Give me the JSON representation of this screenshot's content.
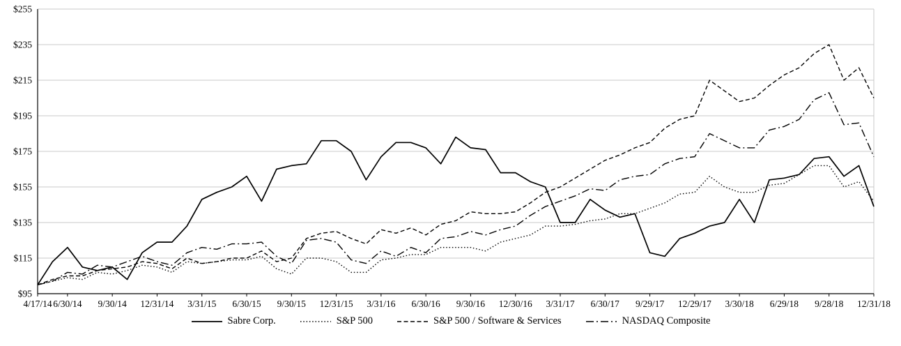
{
  "chart_data": {
    "type": "line",
    "title": "",
    "line_color": "#000000",
    "grid_color": "#c8c8c8",
    "axis_color": "#000000",
    "ylim": [
      95,
      255
    ],
    "y_ticks": [
      95,
      115,
      135,
      155,
      175,
      195,
      215,
      235,
      255
    ],
    "y_tick_prefix": "$",
    "n_points": 57,
    "x_tick_labels": [
      "4/17/14",
      "6/30/14",
      "9/30/14",
      "12/31/14",
      "3/31/15",
      "6/30/15",
      "9/30/15",
      "12/31/15",
      "3/31/16",
      "6/30/16",
      "9/30/16",
      "12/30/16",
      "3/31/17",
      "6/30/17",
      "9/29/17",
      "12/29/17",
      "3/30/18",
      "6/29/18",
      "9/28/18",
      "12/31/18"
    ],
    "x_tick_indices": [
      0,
      2,
      5,
      8,
      11,
      14,
      17,
      20,
      23,
      26,
      29,
      32,
      35,
      38,
      41,
      44,
      47,
      50,
      53,
      56
    ],
    "legend_position": "bottom",
    "series": [
      {
        "name": "Sabre Corp.",
        "dash": "solid",
        "values": [
          100,
          113,
          121,
          110,
          108,
          110,
          103,
          118,
          124,
          124,
          133,
          148,
          152,
          155,
          161,
          147,
          165,
          167,
          168,
          181,
          181,
          175,
          159,
          172,
          180,
          180,
          177,
          168,
          183,
          177,
          176,
          163,
          163,
          158,
          155,
          135,
          135,
          148,
          142,
          138,
          140,
          118,
          116,
          126,
          129,
          133,
          135,
          148,
          135,
          159,
          160,
          162,
          171,
          172,
          161,
          167,
          144
        ]
      },
      {
        "name": "S&P 500",
        "dash": "dotted",
        "values": [
          100,
          102,
          104,
          103,
          107,
          106,
          108,
          111,
          110,
          107,
          113,
          112,
          113,
          114,
          114,
          116,
          109,
          106,
          115,
          115,
          113,
          107,
          107,
          114,
          115,
          117,
          117,
          121,
          121,
          121,
          119,
          124,
          126,
          128,
          133,
          133,
          134,
          136,
          137,
          140,
          140,
          143,
          146,
          151,
          152,
          161,
          155,
          152,
          152,
          156,
          157,
          162,
          167,
          167,
          155,
          158,
          147
        ]
      },
      {
        "name": "S&P 500 / Software & Services",
        "dash": "dashed",
        "values": [
          100,
          103,
          105,
          105,
          108,
          109,
          110,
          113,
          112,
          109,
          115,
          112,
          113,
          115,
          115,
          119,
          113,
          115,
          126,
          129,
          130,
          126,
          123,
          131,
          129,
          132,
          128,
          134,
          136,
          141,
          140,
          140,
          141,
          146,
          152,
          155,
          160,
          165,
          170,
          173,
          177,
          180,
          188,
          193,
          195,
          215,
          209,
          203,
          205,
          212,
          218,
          222,
          230,
          235,
          215,
          222,
          205
        ]
      },
      {
        "name": "NASDAQ Composite",
        "dash": "dashdot",
        "values": [
          100,
          102,
          107,
          106,
          111,
          110,
          113,
          116,
          113,
          111,
          118,
          121,
          120,
          123,
          123,
          124,
          116,
          112,
          125,
          126,
          124,
          114,
          112,
          119,
          116,
          121,
          118,
          126,
          127,
          130,
          128,
          131,
          133,
          139,
          144,
          147,
          150,
          154,
          153,
          159,
          161,
          162,
          168,
          171,
          172,
          185,
          181,
          177,
          177,
          187,
          189,
          193,
          204,
          208,
          190,
          191,
          172
        ]
      }
    ]
  }
}
